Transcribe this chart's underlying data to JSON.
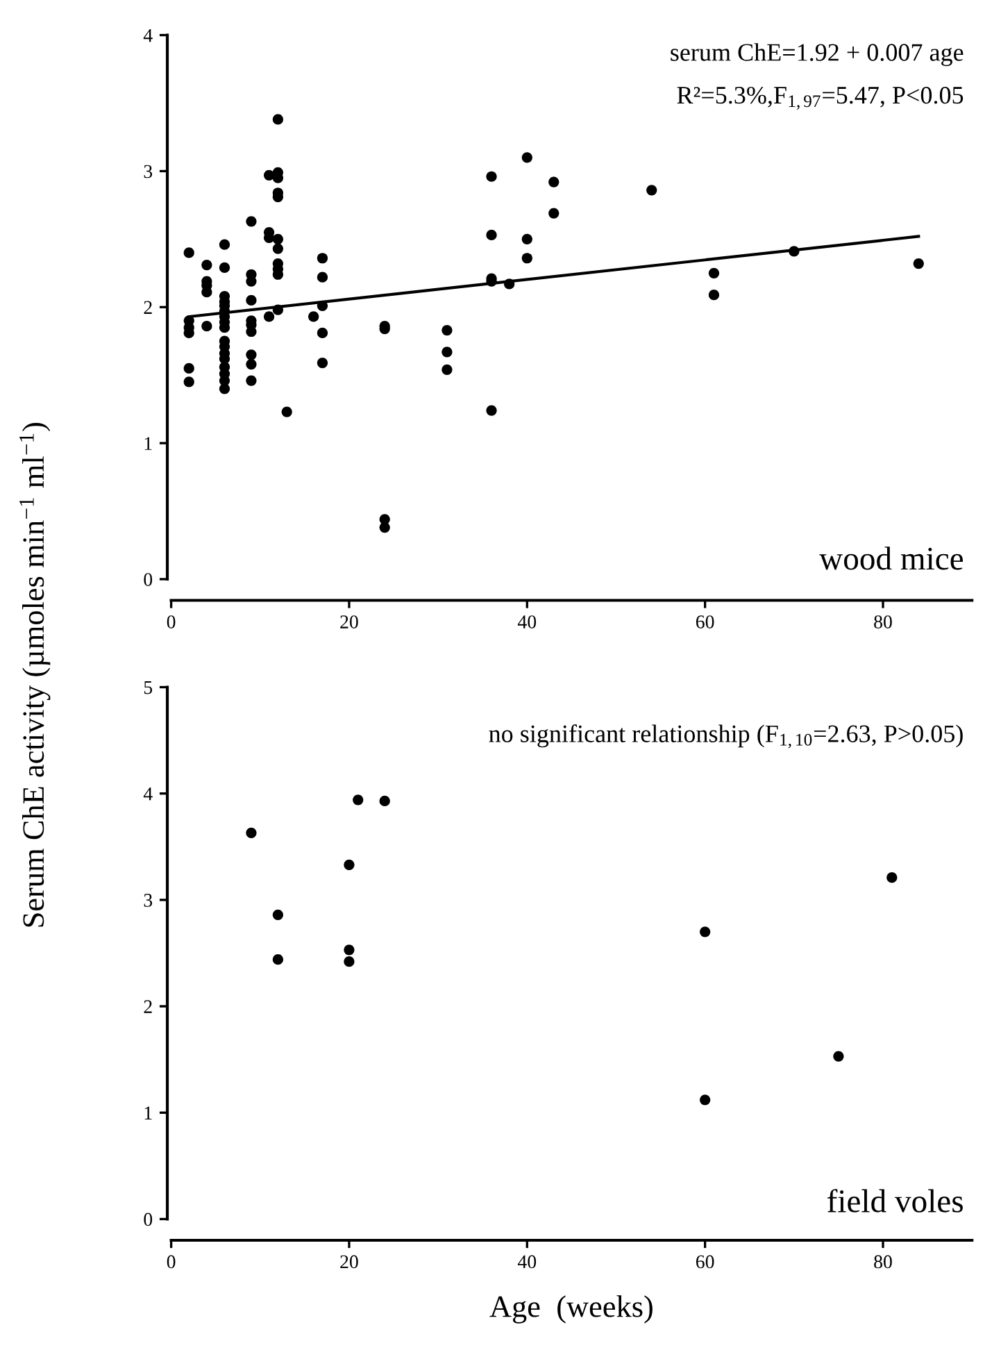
{
  "chart_data": [
    {
      "type": "scatter",
      "ylabel": "Serum ChE activity (µmoles min$^{−1}$ ml$^{−1}$)",
      "xlim": [
        0,
        90
      ],
      "ylim": [
        0,
        4
      ],
      "xticks": [
        0,
        20,
        40,
        60,
        80
      ],
      "yticks": [
        0,
        1,
        2,
        3,
        4
      ],
      "annotations": [
        "serum ChE=1.92 + 0.007 age",
        "R²=5.3%,F$_{1,97}$=5.47, P<0.05",
        "wood mice"
      ],
      "series": [
        {
          "marker": "circle",
          "color": "#000000",
          "x": [
            2,
            2,
            2,
            2,
            2,
            2,
            4,
            4,
            4,
            4,
            4,
            6,
            6,
            6,
            6,
            6,
            6,
            6,
            6,
            6,
            6,
            6,
            6,
            6,
            6,
            6,
            6,
            6,
            9,
            9,
            9,
            9,
            9,
            9,
            9,
            9,
            9,
            9,
            11,
            11,
            11,
            11,
            12,
            12,
            12,
            12,
            12,
            12,
            12,
            12,
            12,
            12,
            12,
            13,
            16,
            17,
            17,
            17,
            17,
            17,
            24,
            24,
            24,
            24,
            31,
            31,
            31,
            36,
            36,
            36,
            36,
            36,
            38,
            40,
            40,
            40,
            43,
            43,
            54,
            61,
            61,
            70,
            84
          ],
          "values": [
            2.4,
            1.9,
            1.85,
            1.81,
            1.55,
            1.45,
            2.31,
            2.19,
            2.16,
            2.11,
            1.86,
            2.46,
            2.29,
            2.08,
            2.04,
            2.01,
            1.97,
            1.93,
            1.89,
            1.85,
            1.75,
            1.71,
            1.66,
            1.62,
            1.56,
            1.51,
            1.46,
            1.4,
            2.63,
            2.24,
            2.19,
            2.05,
            1.9,
            1.87,
            1.82,
            1.65,
            1.58,
            1.46,
            2.97,
            2.55,
            2.51,
            1.93,
            3.38,
            2.99,
            2.95,
            2.84,
            2.81,
            2.5,
            2.43,
            2.32,
            2.28,
            2.24,
            1.98,
            1.23,
            1.93,
            2.36,
            2.22,
            2.01,
            1.81,
            1.59,
            1.86,
            1.84,
            0.44,
            0.38,
            1.83,
            1.67,
            1.54,
            2.96,
            2.53,
            2.21,
            2.19,
            1.24,
            2.17,
            3.1,
            2.5,
            2.36,
            2.92,
            2.69,
            2.86,
            2.25,
            2.09,
            2.41,
            2.32
          ]
        },
        {
          "type": "line",
          "color": "#000000",
          "x": [
            2,
            84
          ],
          "values": [
            1.93,
            2.52
          ]
        }
      ]
    },
    {
      "type": "scatter",
      "xlabel": "Age  (weeks)",
      "xlim": [
        0,
        90
      ],
      "ylim": [
        0,
        5
      ],
      "xticks": [
        0,
        20,
        40,
        60,
        80
      ],
      "yticks": [
        0,
        1,
        2,
        3,
        4,
        5
      ],
      "marker": "circle",
      "annotations": [
        "no significant relationship (F$_{1,10}$=2.63, P>0.05)",
        "field voles"
      ],
      "series": [
        {
          "color": "#000000",
          "x": [
            9,
            12,
            12,
            20,
            20,
            20,
            21,
            24,
            60,
            60,
            75,
            81
          ],
          "values": [
            3.63,
            2.86,
            2.44,
            3.33,
            2.53,
            2.42,
            3.94,
            3.93,
            2.7,
            1.12,
            1.53,
            3.21
          ]
        }
      ]
    }
  ]
}
